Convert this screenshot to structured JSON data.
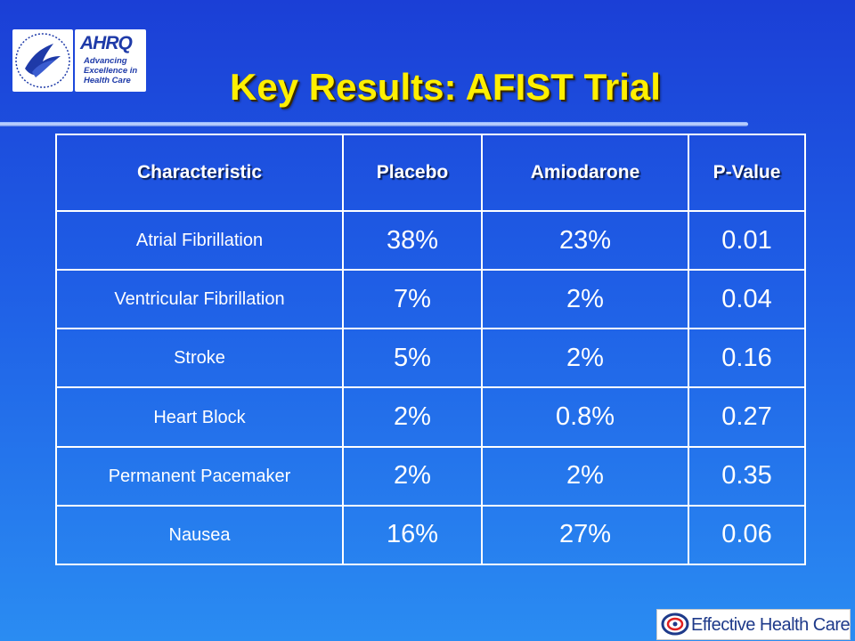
{
  "slide": {
    "title": "Key Results: AFIST Trial"
  },
  "logos": {
    "hhs": {
      "icon": "hhs-eagle-seal-icon"
    },
    "ahrq": {
      "mark": "AHRQ",
      "tagline": "Advancing\nExcellence in\nHealth Care"
    },
    "ehc": {
      "text": "Effective Health Care",
      "icon": "ehc-swirl-icon"
    }
  },
  "table": {
    "headers": [
      "Characteristic",
      "Placebo",
      "Amiodarone",
      "P-Value"
    ],
    "rows": [
      {
        "characteristic": "Atrial Fibrillation",
        "placebo": "38%",
        "amiodarone": "23%",
        "p_value": "0.01"
      },
      {
        "characteristic": "Ventricular Fibrillation",
        "placebo": "7%",
        "amiodarone": "2%",
        "p_value": "0.04"
      },
      {
        "characteristic": "Stroke",
        "placebo": "5%",
        "amiodarone": "2%",
        "p_value": "0.16"
      },
      {
        "characteristic": "Heart Block",
        "placebo": "2%",
        "amiodarone": "0.8%",
        "p_value": "0.27"
      },
      {
        "characteristic": "Permanent Pacemaker",
        "placebo": "2%",
        "amiodarone": "2%",
        "p_value": "0.35"
      },
      {
        "characteristic": "Nausea",
        "placebo": "16%",
        "amiodarone": "27%",
        "p_value": "0.06"
      }
    ]
  },
  "colors": {
    "background_top": "#1b3fd6",
    "background_bottom": "#2a8cf2",
    "title": "#ffef00",
    "text": "#ffffff"
  }
}
